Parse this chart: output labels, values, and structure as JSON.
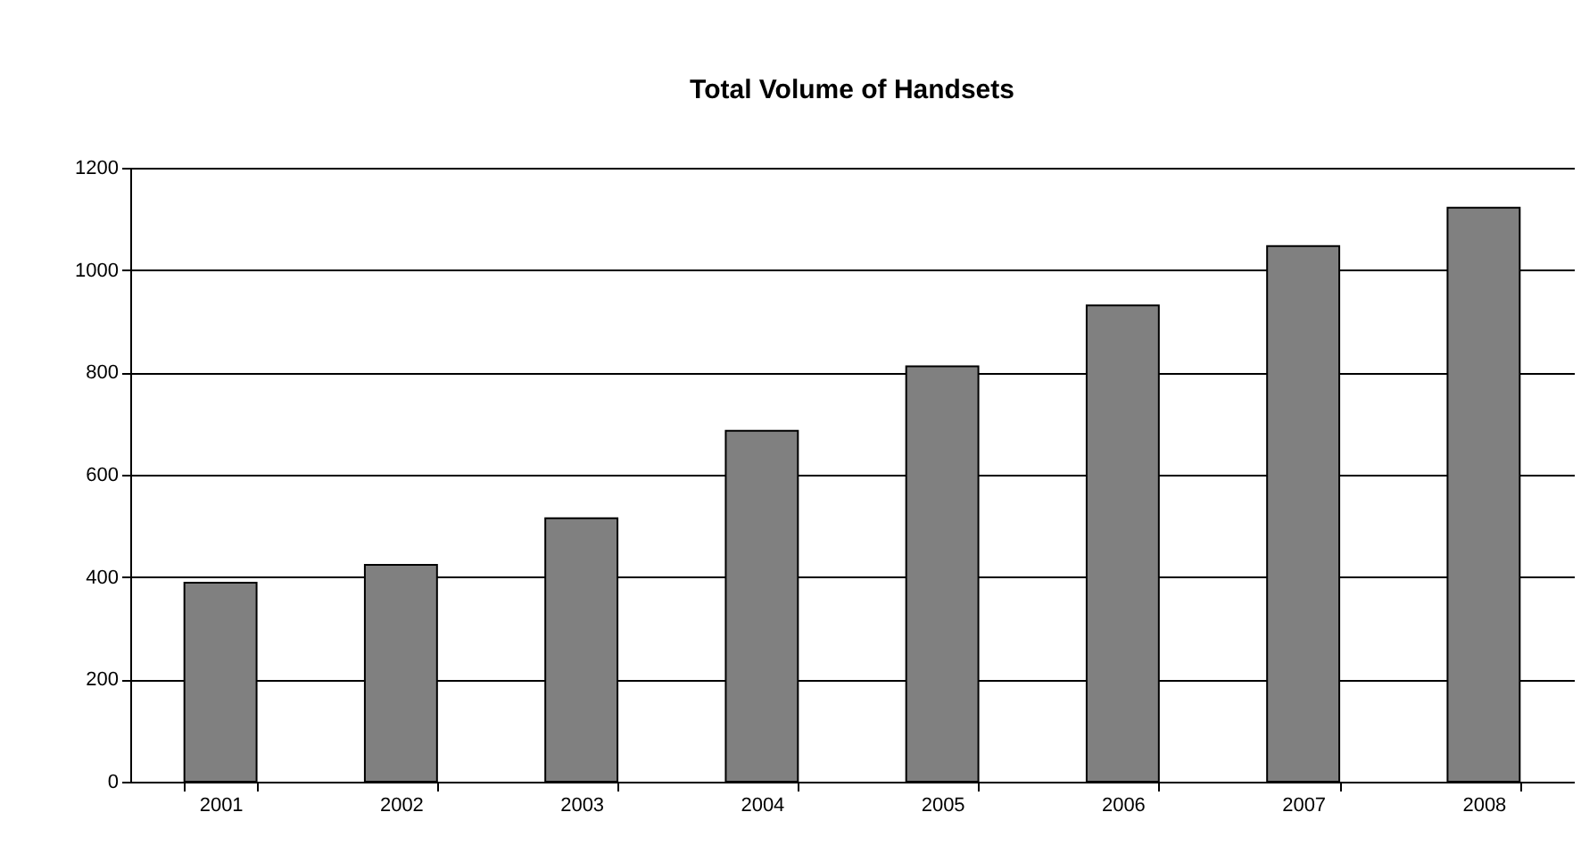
{
  "chart_data": {
    "type": "bar",
    "title": "Total Volume of Handsets",
    "categories": [
      "2001",
      "2002",
      "2003",
      "2004",
      "2005",
      "2006",
      "2007",
      "2008"
    ],
    "values": [
      389,
      424,
      515,
      686,
      812,
      931,
      1047,
      1122
    ],
    "color": "#808080",
    "ylim": [
      0,
      1200
    ],
    "yticks": [
      0,
      200,
      400,
      600,
      800,
      1000,
      1200
    ],
    "grid": "y"
  }
}
